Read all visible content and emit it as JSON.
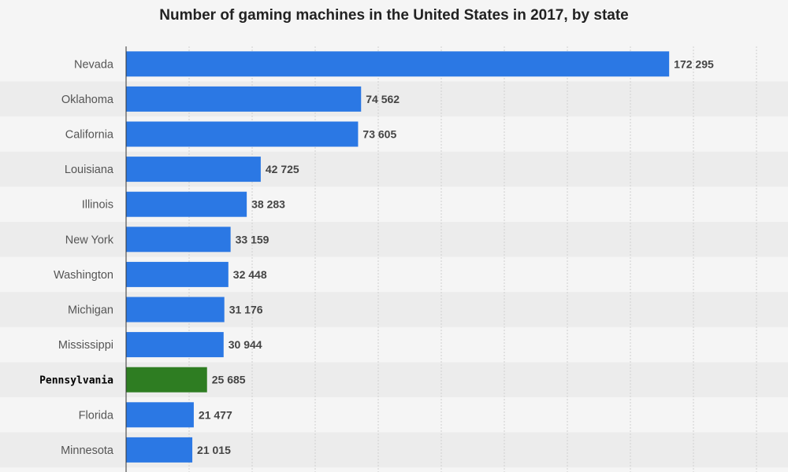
{
  "chart_data": {
    "type": "bar",
    "orientation": "horizontal",
    "title": "Number of gaming machines in the United States in 2017, by state",
    "categories": [
      "Nevada",
      "Oklahoma",
      "California",
      "Louisiana",
      "Illinois",
      "New York",
      "Washington",
      "Michigan",
      "Mississippi",
      "Pennsylvania",
      "Florida",
      "Minnesota"
    ],
    "values": [
      172295,
      74562,
      73605,
      42725,
      38283,
      33159,
      32448,
      31176,
      30944,
      25685,
      21477,
      21015
    ],
    "value_labels": [
      "172 295",
      "74 562",
      "73 605",
      "42 725",
      "38 283",
      "33 159",
      "32 448",
      "31 176",
      "30 944",
      "25 685",
      "21 477",
      "21 015"
    ],
    "highlight": "Pennsylvania",
    "xlim": [
      0,
      200000
    ],
    "grid": true,
    "colors": {
      "bar": "#2b78e4",
      "highlight": "#2e7d22",
      "background": "#f5f5f5",
      "stripe": "#ececec"
    }
  }
}
